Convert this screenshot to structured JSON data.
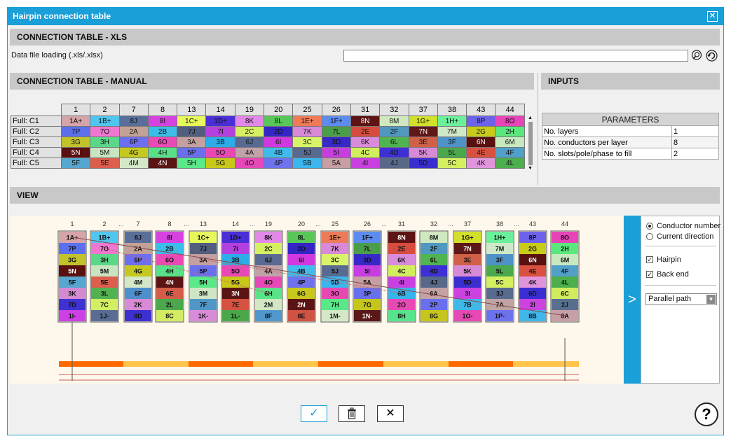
{
  "window": {
    "title": "Hairpin connection table"
  },
  "xls": {
    "header": "CONNECTION TABLE - XLS",
    "label": "Data file loading (.xls/.xlsx)",
    "value": ""
  },
  "manual": {
    "header": "CONNECTION TABLE - MANUAL",
    "columns": [
      "1",
      "2",
      "7",
      "8",
      "13",
      "14",
      "19",
      "20",
      "25",
      "26",
      "31",
      "32",
      "37",
      "38",
      "43",
      "44"
    ],
    "rows": [
      {
        "label": "Full: C1",
        "cells": [
          "1A+",
          "1B+",
          "8J",
          "8I",
          "1C+",
          "1D+",
          "8K",
          "8L",
          "1E+",
          "1F+",
          "8N",
          "8M",
          "1G+",
          "1H+",
          "8P",
          "8O"
        ]
      },
      {
        "label": "Full: C2",
        "cells": [
          "7P",
          "7O",
          "2A",
          "2B",
          "7J",
          "7I",
          "2C",
          "2D",
          "7K",
          "7L",
          "2E",
          "2F",
          "7N",
          "7M",
          "2G",
          "2H"
        ]
      },
      {
        "label": "Full: C3",
        "cells": [
          "3G",
          "3H",
          "6P",
          "6O",
          "3A",
          "3B",
          "6J",
          "6I",
          "3C",
          "3D",
          "6K",
          "6L",
          "3E",
          "3F",
          "6N",
          "6M"
        ]
      },
      {
        "label": "Full: C4",
        "cells": [
          "5N",
          "5M",
          "4G",
          "4H",
          "5P",
          "5O",
          "4A",
          "4B",
          "5J",
          "5I",
          "4C",
          "4D",
          "5K",
          "5L",
          "4E",
          "4F"
        ]
      },
      {
        "label": "Full: C5",
        "cells": [
          "5F",
          "5E",
          "4M",
          "4N",
          "5H",
          "5G",
          "4O",
          "4P",
          "5B",
          "5A",
          "4I",
          "4J",
          "5D",
          "5C",
          "4K",
          "4L"
        ]
      }
    ]
  },
  "inputs": {
    "header": "INPUTS",
    "params_title": "PARAMETERS",
    "params": [
      {
        "label": "No. layers",
        "value": "1"
      },
      {
        "label": "No. conductors per layer",
        "value": "8"
      },
      {
        "label": "No. slots/pole/phase to fill",
        "value": "2"
      }
    ]
  },
  "view": {
    "header": "VIEW",
    "slots": [
      "1",
      "2",
      "7",
      "8",
      "13",
      "14",
      "19",
      "20",
      "25",
      "26",
      "31",
      "32",
      "37",
      "38",
      "43",
      "44"
    ],
    "dots": "...",
    "grid": [
      [
        "1A+",
        "7P",
        "3G",
        "5N",
        "5F",
        "3K",
        "7D",
        "1I-"
      ],
      [
        "1B+",
        "7O",
        "3H",
        "5M",
        "5E",
        "3L",
        "7C",
        "1J-"
      ],
      [
        "8J",
        "2A",
        "6P",
        "4G",
        "4M",
        "6F",
        "2K",
        "8D"
      ],
      [
        "8I",
        "2B",
        "6O",
        "4H",
        "4N",
        "6E",
        "2L",
        "8C"
      ],
      [
        "1C+",
        "7J",
        "3A",
        "5P",
        "5H",
        "3M",
        "7F",
        "1K-"
      ],
      [
        "1D+",
        "7I",
        "3B",
        "5O",
        "5G",
        "3N",
        "7E",
        "1L-"
      ],
      [
        "8K",
        "2C",
        "6J",
        "4A",
        "4O",
        "6H",
        "2M",
        "8F"
      ],
      [
        "8L",
        "2D",
        "6I",
        "4B",
        "4P",
        "6G",
        "2N",
        "8E"
      ],
      [
        "1E+",
        "7K",
        "3C",
        "5J",
        "5B",
        "3O",
        "7H",
        "1M-"
      ],
      [
        "1F+",
        "7L",
        "3D",
        "5I",
        "5A",
        "3P",
        "7G",
        "1N-"
      ],
      [
        "8N",
        "2E",
        "6K",
        "4C",
        "4I",
        "6B",
        "2O",
        "8H"
      ],
      [
        "8M",
        "2F",
        "6L",
        "4D",
        "4J",
        "6A",
        "2P",
        "8G"
      ],
      [
        "1G+",
        "7N",
        "3E",
        "5K",
        "5D",
        "3I",
        "7B",
        "1O-"
      ],
      [
        "1H+",
        "7M",
        "3F",
        "5L",
        "5C",
        "3J",
        "7A",
        "1P-"
      ],
      [
        "8P",
        "2G",
        "6N",
        "4E",
        "4K",
        "6D",
        "2I",
        "8B"
      ],
      [
        "8O",
        "2H",
        "6M",
        "4F",
        "4L",
        "6C",
        "2J",
        "8A"
      ]
    ],
    "bar_colors": [
      "#ff6a00",
      "#ffc54a"
    ]
  },
  "options": {
    "arrow": ">",
    "radio1": "Conductor number",
    "radio2": "Current direction",
    "chk1": "Hairpin",
    "chk2": "Back end",
    "select": "Parallel path"
  },
  "colors": {
    "1A+": "#d5a3a8",
    "1B+": "#4fc6f0",
    "8J": "#5a6e9a",
    "8I": "#d642e0",
    "1C+": "#e6f85a",
    "1D+": "#4a2ed8",
    "8K": "#e288e8",
    "8L": "#58c758",
    "1E+": "#ef7a57",
    "1F+": "#5c8cf0",
    "8N": "#5e1414",
    "8M": "#cfe8c0",
    "1G+": "#d3e02a",
    "1H+": "#6af09a",
    "8P": "#6c62ec",
    "8O": "#e744b8",
    "7P": "#5c70ec",
    "7O": "#ef77d0",
    "2A": "#c3a196",
    "2B": "#3cbce8",
    "7J": "#525e7e",
    "7I": "#b540e0",
    "2C": "#d6f064",
    "2D": "#3426c6",
    "7K": "#d88ad8",
    "7L": "#4a9e4a",
    "2E": "#d64c3e",
    "2F": "#5098c0",
    "7N": "#5e1818",
    "7M": "#cfe8c8",
    "2G": "#c8cc18",
    "2H": "#5ae87c",
    "3G": "#c2c22c",
    "3H": "#5ad888",
    "6P": "#6e6ef0",
    "6O": "#ea4ab6",
    "3A": "#c4a0a0",
    "3B": "#2cace8",
    "6J": "#586a92",
    "6I": "#d238e0",
    "3C": "#daf46a",
    "3D": "#3828c8",
    "6K": "#d98cdc",
    "6L": "#50b450",
    "3E": "#d06048",
    "3F": "#4e92c8",
    "6N": "#581010",
    "6M": "#c8e8c0",
    "5N": "#5a1010",
    "5M": "#c8e4c0",
    "4G": "#c4c820",
    "4H": "#58e088",
    "5P": "#6a70ec",
    "5O": "#e848b4",
    "4A": "#c0a2a8",
    "4B": "#40bcec",
    "5J": "#586a90",
    "5I": "#c63ee0",
    "4C": "#d2ee5c",
    "4D": "#3e30d4",
    "5K": "#d88ad6",
    "5L": "#4ca84c",
    "4E": "#da5040",
    "4F": "#50a0c8",
    "5F": "#56a6d0",
    "5E": "#dc5e4c",
    "4M": "#d4e8c8",
    "4N": "#5a1414",
    "5H": "#5ae888",
    "5G": "#c8c818",
    "4O": "#e748b8",
    "4P": "#6e72ec",
    "5B": "#3cb4ec",
    "5A": "#c69ea4",
    "4I": "#c840e0",
    "4J": "#586888",
    "5D": "#3a2ed0",
    "5C": "#d4f060",
    "4K": "#e094dc",
    "4L": "#4cae4c",
    "3K": "#d48ad0",
    "3L": "#52b252",
    "6F": "#4e8ecc",
    "6E": "#d45c48",
    "3M": "#cfe6c4",
    "3N": "#5a1414",
    "6H": "#5ae488",
    "6G": "#c8c81c",
    "3O": "#e64ab2",
    "3P": "#6870ec",
    "6B": "#38b4ec",
    "6A": "#c4a2a2",
    "3I": "#cc42e0",
    "3J": "#586a8e",
    "6D": "#3a2ed2",
    "6C": "#d0ec5e",
    "7D": "#3e32d0",
    "7C": "#d2ee62",
    "2K": "#d98ad6",
    "2L": "#4ca84c",
    "7F": "#5096c8",
    "7E": "#d65240",
    "2M": "#d2e6c4",
    "2N": "#5a1414",
    "7H": "#58e888",
    "7G": "#c4c61c",
    "2O": "#e84ab4",
    "2P": "#6a70ec",
    "7B": "#40b8e8",
    "7A": "#c0a4a4",
    "2I": "#cc44e0",
    "2J": "#587090",
    "1I-": "#cc40e4",
    "1J-": "#586c94",
    "8D": "#3c30d0",
    "8C": "#d2ec64",
    "1K-": "#d88cd8",
    "1L-": "#4aa84a",
    "8F": "#5098cc",
    "8E": "#d05242",
    "1M-": "#d4e8c6",
    "1N-": "#5a1818",
    "8H": "#58e48c",
    "8G": "#c6c41e",
    "1O-": "#e648b4",
    "1P-": "#6c72ee",
    "8B": "#40b6ea",
    "8A": "#c6a0a6"
  }
}
